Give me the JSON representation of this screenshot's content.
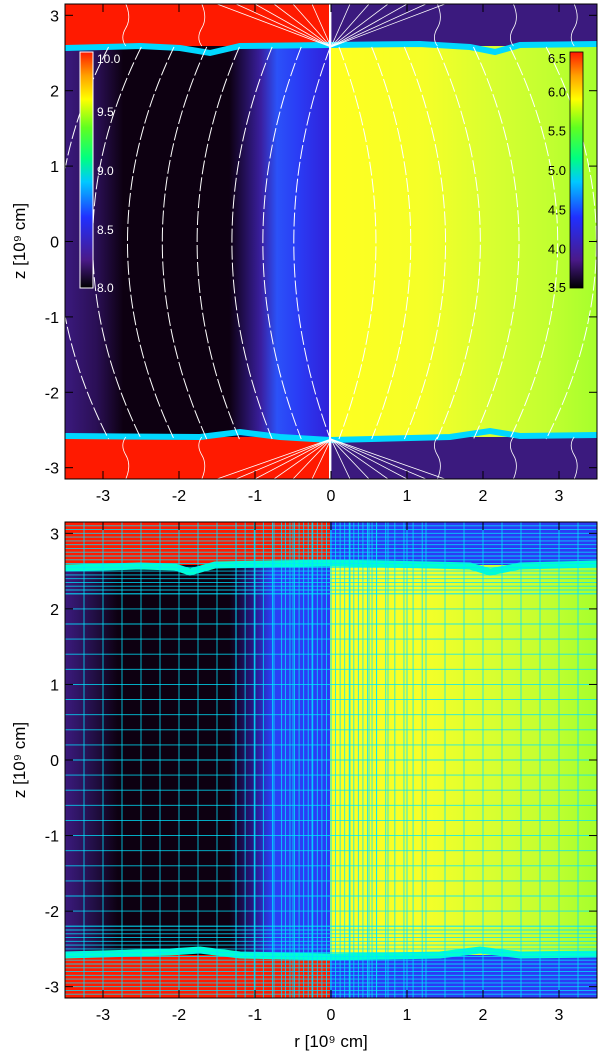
{
  "chart_data": [
    {
      "type": "heatmap",
      "panel": "top",
      "xlabel": "",
      "ylabel": "z [10⁹ cm]",
      "xlim": [
        -3.5,
        3.5
      ],
      "ylim": [
        -3.15,
        3.15
      ],
      "x_ticks": [
        "-3",
        "-2",
        "-1",
        "0",
        "1",
        "2",
        "3"
      ],
      "y_ticks": [
        "-3",
        "-2",
        "-1",
        "0",
        "1",
        "2",
        "3"
      ],
      "x_tick_values": [
        -3,
        -2,
        -1,
        0,
        1,
        2,
        3
      ],
      "y_tick_values": [
        -3,
        -2,
        -1,
        0,
        1,
        2,
        3
      ],
      "colorbars": [
        {
          "side": "left",
          "labels": [
            "10.0",
            "9.5",
            "9.0",
            "8.5",
            "8.0"
          ],
          "values": [
            10.0,
            9.5,
            9.0,
            8.5,
            8.0
          ],
          "range": [
            8.0,
            10.0
          ]
        },
        {
          "side": "right",
          "labels": [
            "6.5",
            "6.0",
            "5.5",
            "5.0",
            "4.5",
            "4.0",
            "3.5"
          ],
          "values": [
            6.5,
            6.0,
            5.5,
            5.0,
            4.5,
            4.0,
            3.5
          ],
          "range": [
            3.5,
            6.5
          ]
        }
      ],
      "contours": "white field lines",
      "interface_z": [
        2.58,
        -2.62
      ]
    },
    {
      "type": "heatmap",
      "panel": "bottom",
      "xlabel": "r [10⁹ cm]",
      "ylabel": "z [10⁹ cm]",
      "xlim": [
        -3.5,
        3.5
      ],
      "ylim": [
        -3.15,
        3.15
      ],
      "x_ticks": [
        "-3",
        "-2",
        "-1",
        "0",
        "1",
        "2",
        "3"
      ],
      "y_ticks": [
        "-3",
        "-2",
        "-1",
        "0",
        "1",
        "2",
        "3"
      ],
      "x_tick_values": [
        -3,
        -2,
        -1,
        0,
        1,
        2,
        3
      ],
      "y_tick_values": [
        -3,
        -2,
        -1,
        0,
        1,
        2,
        3
      ],
      "grid": "cyan mesh overlay",
      "interface_z": [
        2.58,
        -2.62
      ]
    }
  ],
  "colors": {
    "red": "#ff1a00",
    "purple": "#3b1a7e",
    "black": "#0d0011",
    "blue": "#2c3cf5",
    "yellow": "#e6ff30",
    "green": "#a4ff2a",
    "cyan_line": "#00e5ff",
    "contour": "#ffffff"
  }
}
